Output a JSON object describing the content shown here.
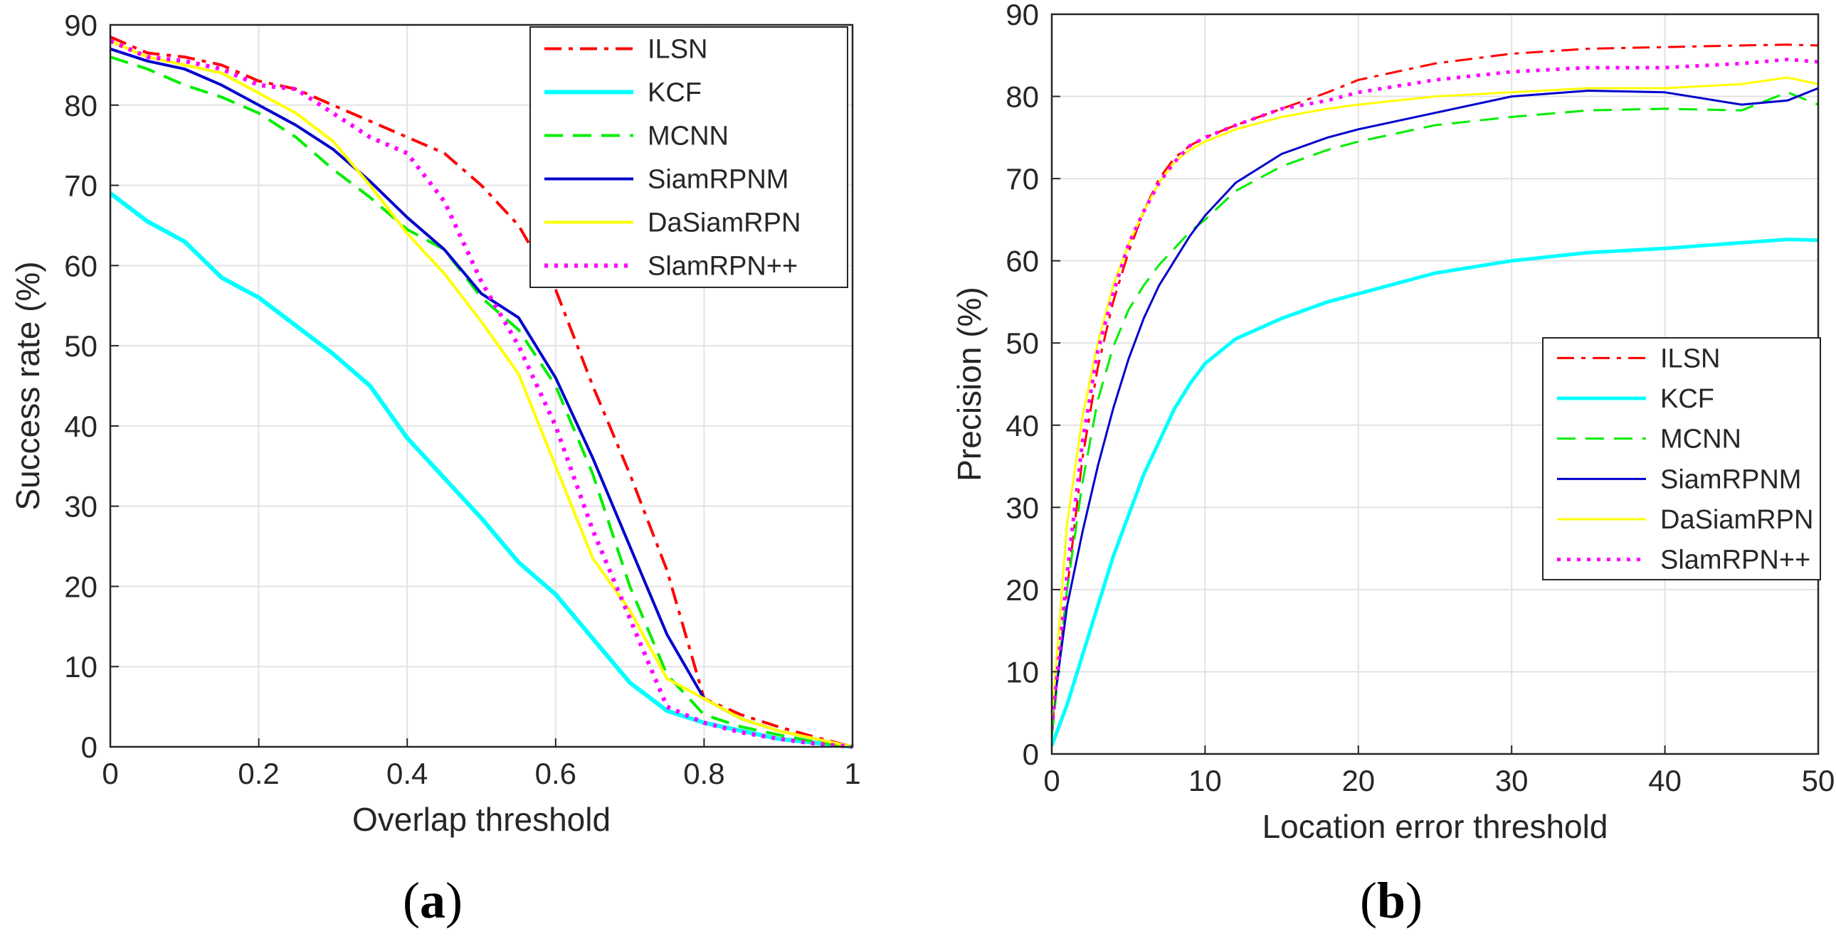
{
  "chart_data": [
    {
      "type": "line",
      "caption_letter": "a",
      "xlabel": "Overlap threshold",
      "ylabel": "Success rate (%)",
      "xlim": [
        0,
        1
      ],
      "ylim": [
        0,
        90
      ],
      "xticks": [
        0,
        0.2,
        0.4,
        0.6,
        0.8,
        1
      ],
      "xtick_labels": [
        "0",
        "0.2",
        "0.4",
        "0.6",
        "0.8",
        "1"
      ],
      "yticks": [
        0,
        10,
        20,
        30,
        40,
        50,
        60,
        70,
        80,
        90
      ],
      "ytick_labels": [
        "0",
        "10",
        "20",
        "30",
        "40",
        "50",
        "60",
        "70",
        "80",
        "90"
      ],
      "grid": true,
      "legend_position": "top-right",
      "series": [
        {
          "name": "ILSN",
          "color": "#ff0000",
          "dash": "dashdot",
          "width": 4,
          "x": [
            0,
            0.05,
            0.1,
            0.15,
            0.2,
            0.25,
            0.3,
            0.35,
            0.4,
            0.45,
            0.5,
            0.55,
            0.6,
            0.65,
            0.7,
            0.75,
            0.8,
            0.85,
            0.9,
            0.95,
            1
          ],
          "y": [
            88.5,
            86.5,
            86,
            85,
            83,
            82,
            80,
            78,
            76,
            74,
            70,
            65,
            57,
            45,
            34,
            22,
            6,
            4,
            2.5,
            1.2,
            0
          ]
        },
        {
          "name": "KCF",
          "color": "#00ffff",
          "dash": "solid",
          "width": 6,
          "x": [
            0,
            0.05,
            0.1,
            0.15,
            0.2,
            0.25,
            0.3,
            0.35,
            0.4,
            0.45,
            0.5,
            0.55,
            0.6,
            0.65,
            0.7,
            0.75,
            0.8,
            0.85,
            0.9,
            0.95,
            1
          ],
          "y": [
            69,
            65.5,
            63,
            58.5,
            56,
            52.5,
            49,
            45,
            38.5,
            33.5,
            28.5,
            23,
            19,
            13.5,
            8,
            4.5,
            3,
            2,
            1,
            0.5,
            0
          ]
        },
        {
          "name": "MCNN",
          "color": "#00ee00",
          "dash": "dashed",
          "width": 4,
          "x": [
            0,
            0.05,
            0.1,
            0.15,
            0.2,
            0.25,
            0.3,
            0.35,
            0.4,
            0.45,
            0.5,
            0.55,
            0.6,
            0.65,
            0.7,
            0.75,
            0.8,
            0.85,
            0.9,
            0.95,
            1
          ],
          "y": [
            86,
            84.5,
            82.5,
            81,
            79,
            76,
            72,
            68.5,
            64.5,
            62,
            56,
            52,
            45,
            34,
            20,
            9,
            4,
            2.5,
            1.5,
            0.6,
            0
          ]
        },
        {
          "name": "SiamRPNM",
          "color": "#0000cc",
          "dash": "solid",
          "width": 4,
          "x": [
            0,
            0.05,
            0.1,
            0.15,
            0.2,
            0.25,
            0.3,
            0.35,
            0.4,
            0.45,
            0.5,
            0.55,
            0.6,
            0.65,
            0.7,
            0.75,
            0.8,
            0.85,
            0.9,
            0.95,
            1
          ],
          "y": [
            87,
            85.5,
            84.5,
            82.5,
            80,
            77.5,
            74.5,
            70.5,
            66,
            62,
            56.5,
            53.5,
            46,
            36,
            25,
            14,
            6,
            3.5,
            2,
            1,
            0
          ]
        },
        {
          "name": "DaSiamRPN",
          "color": "#ffff00",
          "dash": "solid",
          "width": 4,
          "x": [
            0,
            0.05,
            0.1,
            0.15,
            0.2,
            0.25,
            0.3,
            0.35,
            0.4,
            0.45,
            0.5,
            0.55,
            0.6,
            0.65,
            0.7,
            0.75,
            0.8,
            0.85,
            0.9,
            0.95,
            1
          ],
          "y": [
            88,
            86,
            85,
            84,
            81.5,
            79,
            75.5,
            70,
            64,
            59,
            53,
            46.5,
            35,
            23.5,
            17,
            8.5,
            6,
            3.5,
            2,
            1,
            0
          ]
        },
        {
          "name": "SlamRPN++",
          "color": "#ff00ff",
          "dash": "dotted",
          "width": 6,
          "x": [
            0,
            0.05,
            0.1,
            0.15,
            0.2,
            0.25,
            0.3,
            0.35,
            0.4,
            0.45,
            0.5,
            0.55,
            0.6,
            0.65,
            0.7,
            0.75,
            0.8,
            0.85,
            0.9,
            0.95,
            1
          ],
          "y": [
            88,
            86,
            85.5,
            84.5,
            82.5,
            82,
            79,
            76,
            74,
            68,
            58,
            50,
            40,
            27,
            16,
            5,
            3,
            1.8,
            1,
            0.4,
            0
          ]
        }
      ]
    },
    {
      "type": "line",
      "caption_letter": "b",
      "xlabel": "Location error threshold",
      "ylabel": "Precision (%)",
      "xlim": [
        0,
        50
      ],
      "ylim": [
        0,
        90
      ],
      "xticks": [
        0,
        10,
        20,
        30,
        40,
        50
      ],
      "xtick_labels": [
        "0",
        "10",
        "20",
        "30",
        "40",
        "50"
      ],
      "yticks": [
        0,
        10,
        20,
        30,
        40,
        50,
        60,
        70,
        80,
        90
      ],
      "ytick_labels": [
        "0",
        "10",
        "20",
        "30",
        "40",
        "50",
        "60",
        "70",
        "80",
        "90"
      ],
      "grid": true,
      "legend_position": "middle-right",
      "series": [
        {
          "name": "ILSN",
          "color": "#ff0000",
          "dash": "dashdot",
          "width": 3,
          "x": [
            0,
            1,
            2,
            3,
            4,
            5,
            6,
            7,
            8,
            9,
            10,
            12,
            15,
            18,
            20,
            25,
            30,
            35,
            40,
            45,
            48,
            50
          ],
          "y": [
            3,
            20,
            36,
            47,
            55,
            61,
            66,
            70,
            72.5,
            74,
            75,
            76.5,
            78.5,
            80.5,
            82,
            84,
            85.2,
            85.8,
            86,
            86.2,
            86.3,
            86.2
          ]
        },
        {
          "name": "KCF",
          "color": "#00ffff",
          "dash": "solid",
          "width": 5,
          "x": [
            0,
            1,
            2,
            3,
            4,
            5,
            6,
            7,
            8,
            9,
            10,
            12,
            15,
            18,
            20,
            25,
            30,
            35,
            40,
            45,
            48,
            50
          ],
          "y": [
            1,
            6,
            12,
            18,
            24,
            29,
            34,
            38,
            42,
            45,
            47.5,
            50.5,
            53,
            55,
            56,
            58.5,
            60,
            61,
            61.5,
            62.2,
            62.6,
            62.5
          ]
        },
        {
          "name": "MCNN",
          "color": "#00ee00",
          "dash": "dashed",
          "width": 3,
          "x": [
            0,
            1,
            2,
            3,
            4,
            5,
            6,
            7,
            8,
            9,
            10,
            12,
            15,
            18,
            20,
            25,
            30,
            35,
            40,
            45,
            48,
            50
          ],
          "y": [
            2,
            20,
            33,
            43,
            49.5,
            54,
            57,
            59.5,
            61.5,
            63.5,
            65,
            68.5,
            71.5,
            73.5,
            74.5,
            76.5,
            77.5,
            78.3,
            78.5,
            78.3,
            80.5,
            79
          ]
        },
        {
          "name": "SiamRPNM",
          "color": "#0000cc",
          "dash": "solid",
          "width": 3,
          "x": [
            0,
            1,
            2,
            3,
            4,
            5,
            6,
            7,
            8,
            9,
            10,
            12,
            15,
            18,
            20,
            25,
            30,
            35,
            40,
            45,
            48,
            50
          ],
          "y": [
            4,
            18,
            27,
            35,
            42,
            48,
            53,
            57,
            60,
            63,
            65.5,
            69.5,
            73,
            75,
            76,
            78,
            80,
            80.7,
            80.5,
            79,
            79.5,
            81
          ]
        },
        {
          "name": "DaSiamRPN",
          "color": "#ffff00",
          "dash": "solid",
          "width": 3,
          "x": [
            0,
            1,
            2,
            3,
            4,
            5,
            6,
            7,
            8,
            9,
            10,
            12,
            15,
            18,
            20,
            25,
            30,
            35,
            40,
            45,
            48,
            50
          ],
          "y": [
            4,
            28,
            41,
            50,
            57,
            62,
            66,
            69.5,
            72,
            73.5,
            74.5,
            76,
            77.5,
            78.5,
            79,
            80,
            80.5,
            81,
            81,
            81.5,
            82.3,
            81.5
          ]
        },
        {
          "name": "SlamRPN++",
          "color": "#ff00ff",
          "dash": "dotted",
          "width": 5,
          "x": [
            0,
            1,
            2,
            3,
            4,
            5,
            6,
            7,
            8,
            9,
            10,
            12,
            15,
            18,
            20,
            25,
            30,
            35,
            40,
            45,
            48,
            50
          ],
          "y": [
            3,
            22,
            38,
            49,
            56,
            62,
            66,
            69.5,
            72,
            74,
            75,
            76.5,
            78.5,
            79.5,
            80.5,
            82,
            83,
            83.5,
            83.5,
            84,
            84.5,
            84.2
          ]
        }
      ]
    }
  ]
}
